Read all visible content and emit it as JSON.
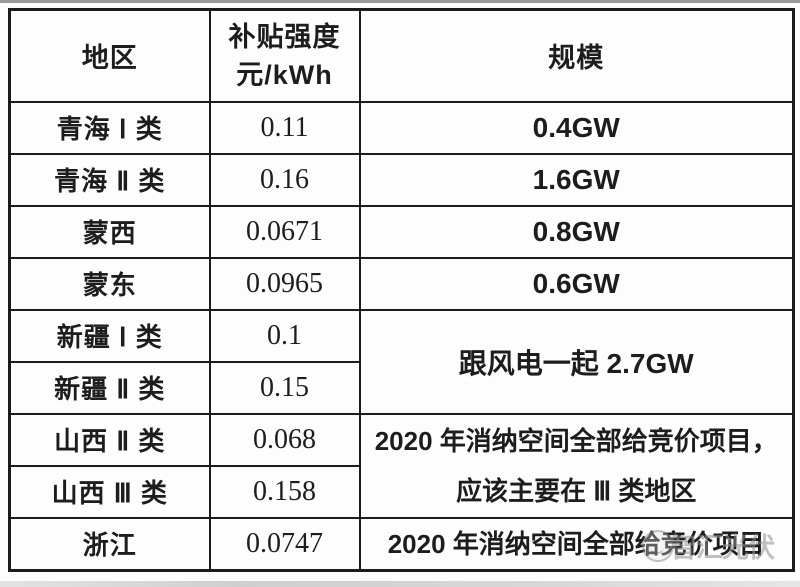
{
  "table": {
    "headers": {
      "region": "地区",
      "subsidy_line1": "补贴强度",
      "subsidy_line2": "元/kWh",
      "scale": "规模"
    },
    "rows": [
      {
        "region": "青海 Ⅰ 类",
        "subsidy": "0.11",
        "scale": "0.4GW"
      },
      {
        "region": "青海 Ⅱ 类",
        "subsidy": "0.16",
        "scale": "1.6GW"
      },
      {
        "region": "蒙西",
        "subsidy": "0.0671",
        "scale": "0.8GW"
      },
      {
        "region": "蒙东",
        "subsidy": "0.0965",
        "scale": "0.6GW"
      },
      {
        "region": "新疆 Ⅰ 类",
        "subsidy": "0.1"
      },
      {
        "region": "新疆 Ⅱ 类",
        "subsidy": "0.15"
      },
      {
        "region": "山西 Ⅱ 类",
        "subsidy": "0.068"
      },
      {
        "region": "山西 Ⅲ 类",
        "subsidy": "0.158"
      },
      {
        "region": "浙江",
        "subsidy": "0.0747",
        "scale": "2020 年消纳空间全部给竞价项目"
      }
    ],
    "merged_cells": [
      {
        "scale": "跟风电一起 2.7GW"
      },
      {
        "scale": "2020 年消纳空间全部给竞价项目，应该主要在 Ⅲ 类地区"
      }
    ]
  },
  "watermark": {
    "text": "智汇光伏",
    "color": "#8f8f8f"
  },
  "colors": {
    "border": "#1c1c1c",
    "text": "#1d1d1d",
    "background": "#fdfdfd",
    "top_edge": "#9a9a9a",
    "bottom_edge": "#d7d7d7"
  }
}
